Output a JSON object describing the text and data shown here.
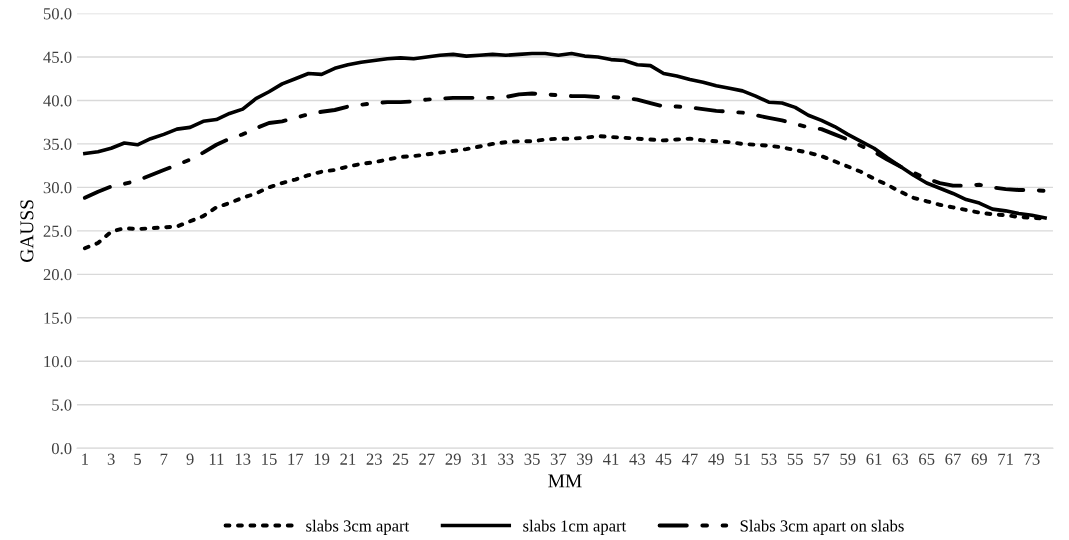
{
  "chart_data": {
    "type": "line",
    "xlabel": "MM",
    "ylabel": "GAUSS",
    "categories": [
      "1",
      null,
      "3",
      null,
      "5",
      null,
      "7",
      null,
      "9",
      null,
      "11",
      null,
      "13",
      null,
      "15",
      null,
      "17",
      null,
      "19",
      null,
      "21",
      null,
      "23",
      null,
      "25",
      null,
      "27",
      null,
      "29",
      null,
      "31",
      null,
      "33",
      null,
      "35",
      null,
      "37",
      null,
      "39",
      null,
      "41",
      null,
      "43",
      null,
      "45",
      null,
      "47",
      null,
      "49",
      null,
      "51",
      null,
      "53",
      null,
      "55",
      null,
      "57",
      null,
      "59",
      null,
      "61",
      null,
      "63",
      null,
      "65",
      null,
      "67",
      null,
      "69",
      null,
      "71",
      null,
      "73",
      null
    ],
    "series": [
      {
        "name": "slabs 3cm apart",
        "color": "#000000",
        "line_style": "dotted",
        "values": [
          23.0,
          23.6,
          24.9,
          25.3,
          25.2,
          25.3,
          25.4,
          25.5,
          26.1,
          26.7,
          27.7,
          28.2,
          28.8,
          29.3,
          30.0,
          30.5,
          30.9,
          31.4,
          31.8,
          32.0,
          32.4,
          32.7,
          32.9,
          33.2,
          33.5,
          33.6,
          33.8,
          34.0,
          34.2,
          34.4,
          34.7,
          35.0,
          35.2,
          35.3,
          35.3,
          35.5,
          35.6,
          35.6,
          35.7,
          35.9,
          35.8,
          35.7,
          35.6,
          35.5,
          35.4,
          35.5,
          35.6,
          35.4,
          35.3,
          35.2,
          35.0,
          34.9,
          34.8,
          34.6,
          34.3,
          34.0,
          33.6,
          33.0,
          32.4,
          31.8,
          31.0,
          30.3,
          29.5,
          28.8,
          28.4,
          28.0,
          27.7,
          27.4,
          27.1,
          26.9,
          26.8,
          26.6,
          26.5,
          26.4
        ]
      },
      {
        "name": "slabs 1cm apart",
        "color": "#000000",
        "line_style": "solid",
        "values": [
          33.9,
          34.1,
          34.5,
          35.1,
          34.9,
          35.6,
          36.1,
          36.7,
          36.9,
          37.6,
          37.8,
          38.5,
          39.0,
          40.2,
          41.0,
          41.9,
          42.5,
          43.1,
          43.0,
          43.7,
          44.1,
          44.4,
          44.6,
          44.8,
          44.9,
          44.8,
          45.0,
          45.2,
          45.3,
          45.1,
          45.2,
          45.3,
          45.2,
          45.3,
          45.4,
          45.4,
          45.2,
          45.4,
          45.1,
          45.0,
          44.7,
          44.6,
          44.1,
          44.0,
          43.1,
          42.8,
          42.4,
          42.1,
          41.7,
          41.4,
          41.1,
          40.5,
          39.8,
          39.7,
          39.2,
          38.3,
          37.7,
          37.0,
          36.1,
          35.3,
          34.5,
          33.4,
          32.4,
          31.4,
          30.5,
          29.9,
          29.3,
          28.6,
          28.2,
          27.5,
          27.3,
          27.0,
          26.8,
          26.5
        ]
      },
      {
        "name": "Slabs 3cm apart on slabs",
        "color": "#000000",
        "line_style": "dashdot",
        "values": [
          28.8,
          29.5,
          30.1,
          30.4,
          30.8,
          31.4,
          32.0,
          32.6,
          33.2,
          34.0,
          34.9,
          35.6,
          36.1,
          36.8,
          37.4,
          37.6,
          38.0,
          38.4,
          38.7,
          38.9,
          39.3,
          39.5,
          39.7,
          39.8,
          39.8,
          39.9,
          40.1,
          40.2,
          40.3,
          40.3,
          40.3,
          40.3,
          40.4,
          40.7,
          40.8,
          40.7,
          40.6,
          40.5,
          40.5,
          40.4,
          40.4,
          40.3,
          40.1,
          39.7,
          39.3,
          39.3,
          39.2,
          39.0,
          38.8,
          38.7,
          38.6,
          38.3,
          38.0,
          37.7,
          37.3,
          36.9,
          36.7,
          36.1,
          35.5,
          34.8,
          34.1,
          33.2,
          32.4,
          31.7,
          31.0,
          30.5,
          30.2,
          30.2,
          30.3,
          30.0,
          29.8,
          29.7,
          29.7,
          29.6
        ]
      }
    ],
    "ylim": [
      0,
      50
    ],
    "yticks": [
      {
        "value": 0,
        "label": "0.0"
      },
      {
        "value": 5,
        "label": "5.0"
      },
      {
        "value": 10,
        "label": "10.0"
      },
      {
        "value": 15,
        "label": "15.0"
      },
      {
        "value": 20,
        "label": "20.0"
      },
      {
        "value": 25,
        "label": "25.0"
      },
      {
        "value": 30,
        "label": "30.0"
      },
      {
        "value": 35,
        "label": "35.0"
      },
      {
        "value": 40,
        "label": "40.0"
      },
      {
        "value": 45,
        "label": "45.0"
      },
      {
        "value": 50,
        "label": "50.0"
      }
    ],
    "grid": "y",
    "legend": "bottom"
  }
}
